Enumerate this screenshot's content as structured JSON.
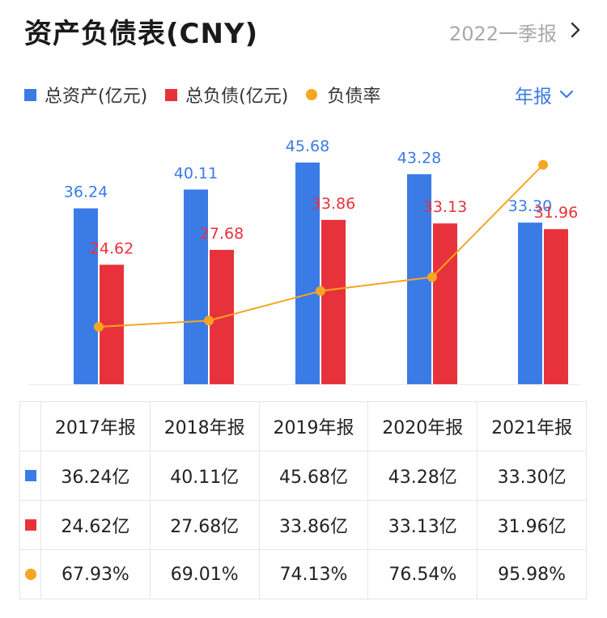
{
  "header": {
    "title": "资产负债表(CNY)",
    "period": "2022一季报"
  },
  "frequency": {
    "label": "年报"
  },
  "colors": {
    "assets": "#3a7be6",
    "liabilities": "#e8323b",
    "ratio": "#f5a623"
  },
  "chart_data": {
    "type": "bar",
    "categories": [
      "2017年报",
      "2018年报",
      "2019年报",
      "2020年报",
      "2021年报"
    ],
    "series": [
      {
        "name": "总资产(亿元)",
        "kind": "bar",
        "values": [
          36.24,
          40.11,
          45.68,
          43.28,
          33.3
        ],
        "labels": [
          "36.24",
          "40.11",
          "45.68",
          "43.28",
          "33.30"
        ]
      },
      {
        "name": "总负债(亿元)",
        "kind": "bar",
        "values": [
          24.62,
          27.68,
          33.86,
          33.13,
          31.96
        ],
        "labels": [
          "24.62",
          "27.68",
          "33.86",
          "33.13",
          "31.96"
        ]
      },
      {
        "name": "负债率",
        "kind": "line",
        "values": [
          67.93,
          69.01,
          74.13,
          76.54,
          95.98
        ]
      }
    ],
    "ylim": [
      0,
      50
    ],
    "ratio_ylim": [
      58,
      100
    ],
    "legend": "top-left",
    "grid": false
  },
  "table": {
    "columns": [
      "2017年报",
      "2018年报",
      "2019年报",
      "2020年报",
      "2021年报"
    ],
    "rows": [
      {
        "key": "assets",
        "cells": [
          "36.24亿",
          "40.11亿",
          "45.68亿",
          "43.28亿",
          "33.30亿"
        ]
      },
      {
        "key": "liabilities",
        "cells": [
          "24.62亿",
          "27.68亿",
          "33.86亿",
          "33.13亿",
          "31.96亿"
        ]
      },
      {
        "key": "ratio",
        "cells": [
          "67.93%",
          "69.01%",
          "74.13%",
          "76.54%",
          "95.98%"
        ]
      }
    ]
  }
}
